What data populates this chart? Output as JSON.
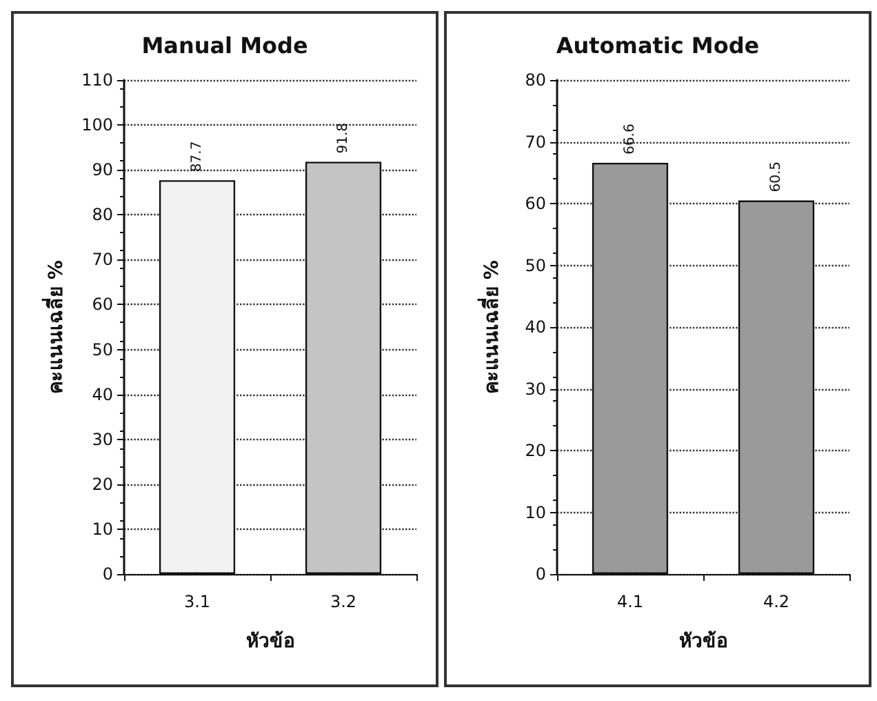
{
  "chart_data": [
    {
      "type": "bar",
      "title": "Manual Mode",
      "xlabel": "หัวข้อ",
      "ylabel": "คะแนนเฉลี่ย %",
      "categories": [
        "3.1",
        "3.2"
      ],
      "values": [
        87.7,
        91.8
      ],
      "colors": [
        "#f2f2f2",
        "#c4c4c4"
      ],
      "ylim": [
        0,
        110
      ],
      "yticks": [
        0,
        10,
        20,
        30,
        40,
        50,
        60,
        70,
        80,
        90,
        100,
        110
      ],
      "grid": "y",
      "data_labels": true
    },
    {
      "type": "bar",
      "title": "Automatic Mode",
      "xlabel": "หัวข้อ",
      "ylabel": "คะแนนเฉลี่ย %",
      "categories": [
        "4.1",
        "4.2"
      ],
      "values": [
        66.6,
        60.5
      ],
      "colors": [
        "#9a9a9a",
        "#9a9a9a"
      ],
      "ylim": [
        0,
        80
      ],
      "yticks": [
        0,
        10,
        20,
        30,
        40,
        50,
        60,
        70,
        80
      ],
      "grid": "y",
      "data_labels": true
    }
  ]
}
